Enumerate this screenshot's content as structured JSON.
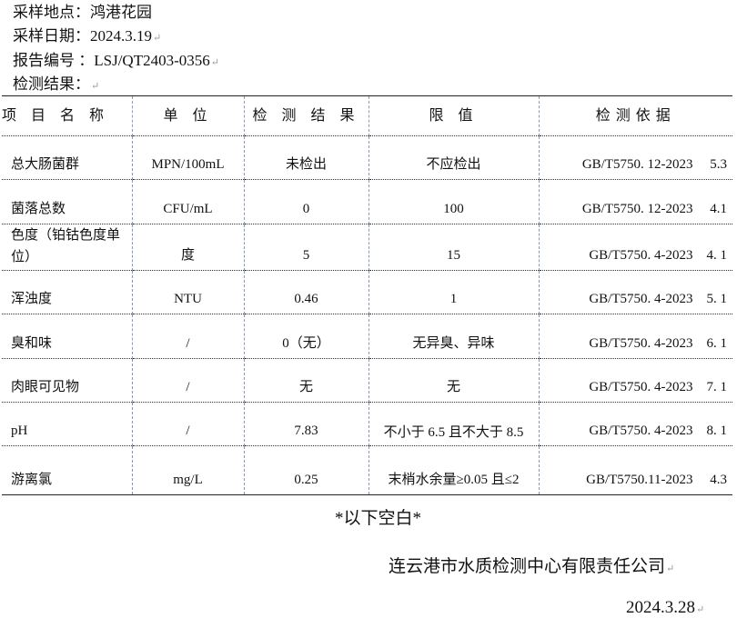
{
  "header": {
    "site_label": "采样地点：",
    "site": "鸿港花园",
    "date_label": "采样日期：",
    "date": "2024.3.19",
    "report_label": "报告编号 ：",
    "report_no": "LSJ/QT2403-0356",
    "result_label": "检测结果："
  },
  "table": {
    "columns": [
      "项 目 名 称",
      "单  位",
      "检 测 结 果",
      "限  值",
      "检测依据"
    ],
    "rows": [
      [
        "总大肠菌群",
        "MPN/100mL",
        "未检出",
        "不应检出",
        "GB/T5750. 12-2023     5.3"
      ],
      [
        "菌落总数",
        "CFU/mL",
        "0",
        "100",
        "GB/T5750. 12-2023     4.1"
      ],
      [
        "色度（铂钴色度单位）",
        "度",
        "5",
        "15",
        "GB/T5750. 4-2023    4. 1"
      ],
      [
        "浑浊度",
        "NTU",
        "0.46",
        "1",
        "GB/T5750. 4-2023    5. 1"
      ],
      [
        "臭和味",
        "/",
        "0（无）",
        "无异臭、异味",
        "GB/T5750. 4-2023    6. 1"
      ],
      [
        "肉眼可见物",
        "/",
        "无",
        "无",
        "GB/T5750. 4-2023    7. 1"
      ],
      [
        "pH",
        "/",
        "7.83",
        "不小于 6.5 且不大于 8.5",
        "GB/T5750. 4-2023    8. 1"
      ],
      [
        "游离氯",
        "mg/L",
        "0.25",
        "末梢水余量≥0.05 且≤2",
        "GB/T5750.11-2023     4.3"
      ]
    ]
  },
  "footer": {
    "blank_note": "*以下空白*",
    "company": "连云港市水质检测中心有限责任公司",
    "date": "2024.3.28"
  }
}
